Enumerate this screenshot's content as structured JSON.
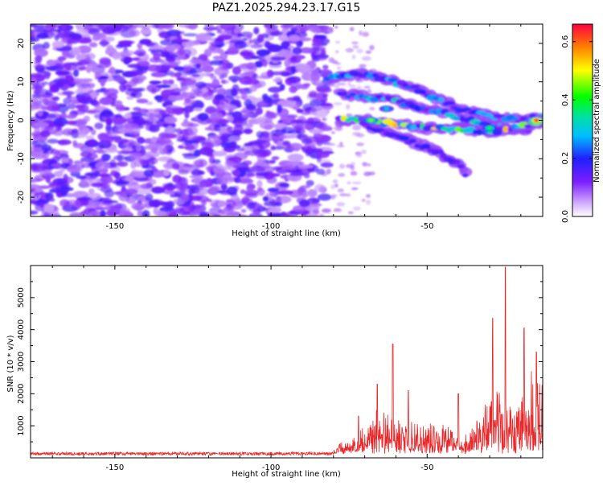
{
  "figure": {
    "title": "PAZ1.2025.294.23.17.G15"
  },
  "chart_data": [
    {
      "type": "heatmap",
      "name": "spectrogram",
      "xlabel": "Height of straight line (km)",
      "ylabel": "Frequency (Hz)",
      "xlim": [
        -177,
        -13
      ],
      "ylim": [
        -25,
        25
      ],
      "xticks": [
        -150,
        -100,
        -50
      ],
      "yticks": [
        -20,
        -10,
        0,
        10,
        20
      ],
      "xtick_labels": [
        "-150",
        "-100",
        "-50"
      ],
      "ytick_labels": [
        "-20",
        "-10",
        "0",
        "10",
        "20"
      ],
      "noise_region": {
        "x_range": [
          -177,
          -82
        ],
        "y_range": [
          -25,
          25
        ],
        "level": [
          0.05,
          0.17
        ]
      },
      "signal_tracks": [
        {
          "x": [
            -82,
            -70,
            -60,
            -50,
            -40,
            -30,
            -20,
            -13
          ],
          "y": [
            11,
            12,
            10,
            7,
            3,
            1,
            0,
            1
          ],
          "peak": 0.3
        },
        {
          "x": [
            -78,
            -70,
            -60,
            -50,
            -40,
            -30,
            -20,
            -13
          ],
          "y": [
            7,
            6,
            5,
            3,
            1,
            -1,
            -3,
            0
          ],
          "peak": 0.35
        },
        {
          "x": [
            -78,
            -70,
            -60,
            -50,
            -40,
            -30,
            -20,
            -13
          ],
          "y": [
            0,
            0,
            -1,
            -2,
            -2,
            -3,
            -2,
            0
          ],
          "peak": 0.55
        },
        {
          "x": [
            -70,
            -60,
            -50,
            -40,
            -37
          ],
          "y": [
            -1,
            -4,
            -7,
            -11,
            -15
          ],
          "peak": 0.2
        }
      ],
      "hotspots": [
        {
          "x": -15,
          "y": 0,
          "value": 0.65
        },
        {
          "x": -68,
          "y": 0,
          "value": 0.45
        },
        {
          "x": -30,
          "y": -2,
          "value": 0.4
        },
        {
          "x": -63,
          "y": 3,
          "value": 0.3
        }
      ],
      "colorbar": {
        "label": "Normalized spectral amplitude",
        "range": [
          0,
          0.66
        ],
        "ticks": [
          0.0,
          0.2,
          0.4,
          0.6
        ],
        "tick_labels": [
          "0.0",
          "0.2",
          "0.4",
          "0.6"
        ],
        "colormap": "rainbow"
      }
    },
    {
      "type": "line",
      "name": "snr",
      "xlabel": "Height of straight line (km)",
      "ylabel": "SNR (10 * v/v)",
      "xlim": [
        -177,
        -13
      ],
      "ylim": [
        0,
        6000
      ],
      "xticks": [
        -150,
        -100,
        -50
      ],
      "yticks": [
        1000,
        2000,
        3000,
        4000,
        5000
      ],
      "xtick_labels": [
        "-150",
        "-100",
        "-50"
      ],
      "ytick_labels": [
        "1000",
        "2000",
        "3000",
        "4000",
        "5000"
      ],
      "color": "#e8282a",
      "noise_floor": 130,
      "envelope": [
        {
          "x": -177,
          "y": 200
        },
        {
          "x": -82,
          "y": 230
        },
        {
          "x": -76,
          "y": 600
        },
        {
          "x": -70,
          "y": 1100
        },
        {
          "x": -65,
          "y": 1700
        },
        {
          "x": -60,
          "y": 1500
        },
        {
          "x": -50,
          "y": 1300
        },
        {
          "x": -45,
          "y": 1100
        },
        {
          "x": -38,
          "y": 700
        },
        {
          "x": -33,
          "y": 1500
        },
        {
          "x": -28,
          "y": 2600
        },
        {
          "x": -23,
          "y": 2400
        },
        {
          "x": -18,
          "y": 2600
        },
        {
          "x": -13,
          "y": 3100
        }
      ],
      "peaks": [
        {
          "x": -61,
          "y": 3550
        },
        {
          "x": -66,
          "y": 2300
        },
        {
          "x": -29,
          "y": 4350
        },
        {
          "x": -25,
          "y": 5950
        },
        {
          "x": -19,
          "y": 4050
        },
        {
          "x": -15,
          "y": 3300
        },
        {
          "x": -40,
          "y": 2000
        },
        {
          "x": -56,
          "y": 2100
        },
        {
          "x": -72,
          "y": 1300
        }
      ]
    }
  ]
}
